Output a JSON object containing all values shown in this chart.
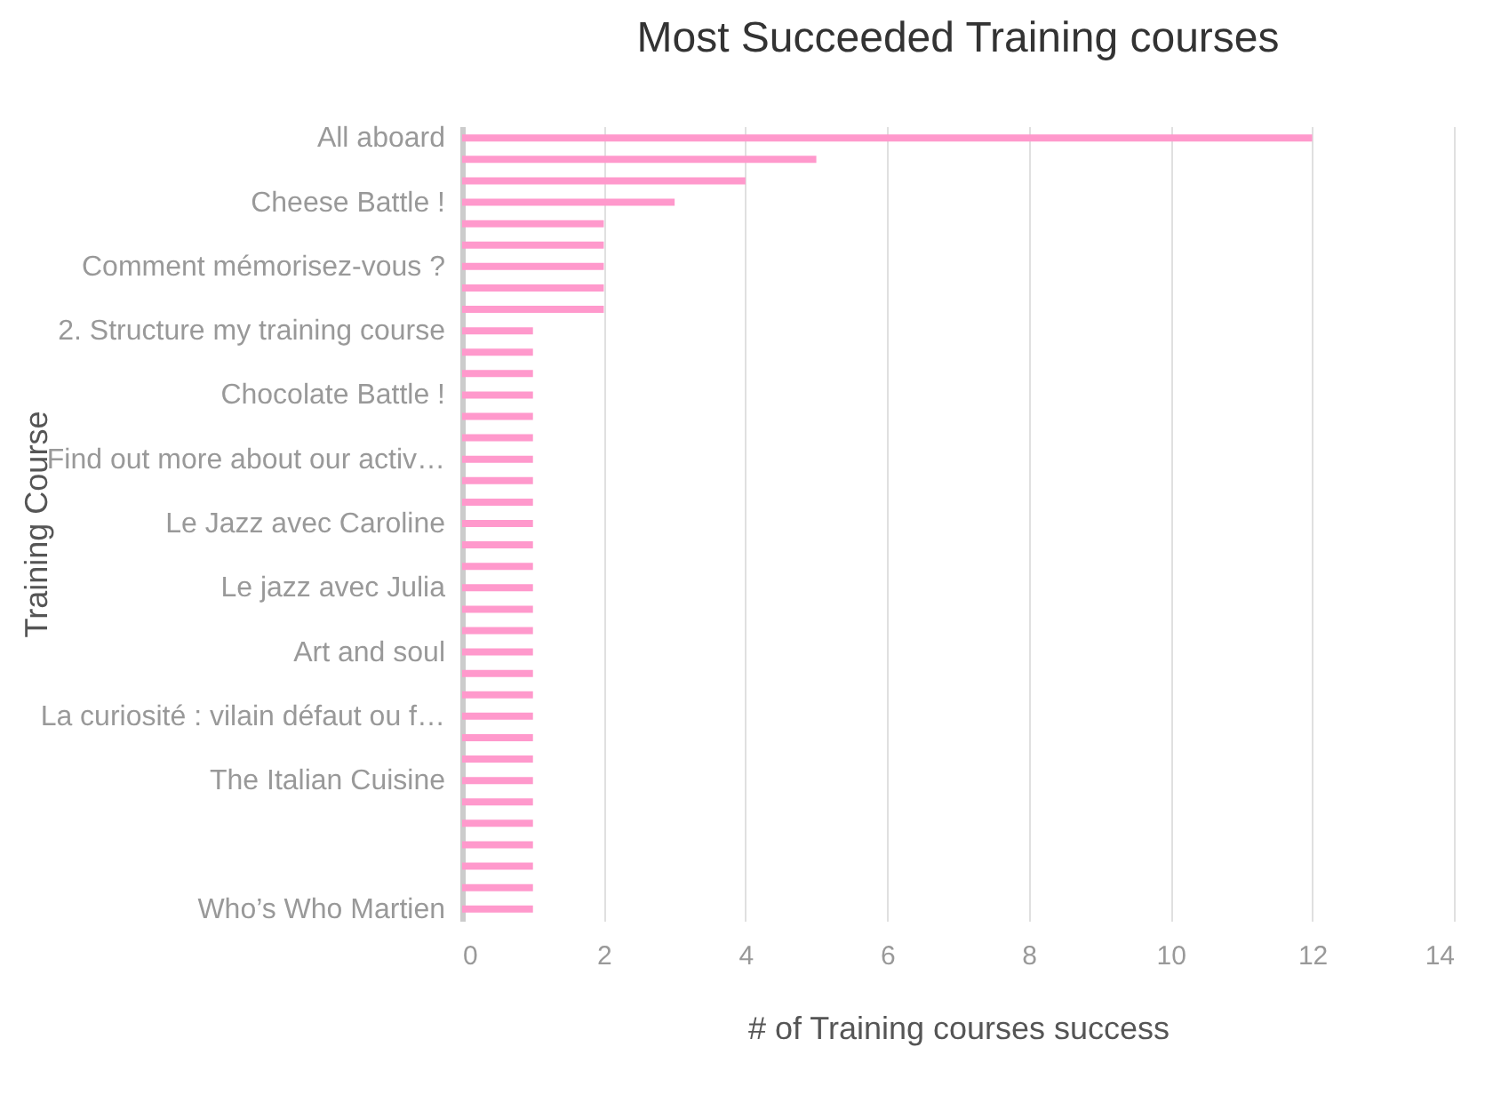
{
  "chart_data": {
    "type": "bar",
    "orientation": "horizontal",
    "title": "Most Succeeded Training courses",
    "xlabel": "# of Training courses success",
    "ylabel": "Training Course",
    "categories": [
      "All aboard",
      null,
      null,
      "Cheese Battle !",
      null,
      null,
      "Comment mémorisez-vous ?",
      null,
      null,
      "2. Structure my training course",
      null,
      null,
      "Chocolate Battle !",
      null,
      null,
      "Find out more about our activ…",
      null,
      null,
      "Le Jazz avec Caroline",
      null,
      null,
      "Le jazz avec Julia",
      null,
      null,
      "Art and soul",
      null,
      null,
      "La curiosité : vilain défaut ou f…",
      null,
      null,
      "The Italian Cuisine",
      null,
      null,
      null,
      null,
      null,
      "Who’s Who Martien"
    ],
    "values": [
      12,
      5,
      4,
      3,
      2,
      2,
      2,
      2,
      2,
      1,
      1,
      1,
      1,
      1,
      1,
      1,
      1,
      1,
      1,
      1,
      1,
      1,
      1,
      1,
      1,
      1,
      1,
      1,
      1,
      1,
      1,
      1,
      1,
      1,
      1,
      1,
      1
    ],
    "color": "#ff99cc",
    "xlim": [
      0,
      14
    ],
    "xticks": [
      0,
      2,
      4,
      6,
      8,
      10,
      12,
      14
    ],
    "grid": "x"
  }
}
